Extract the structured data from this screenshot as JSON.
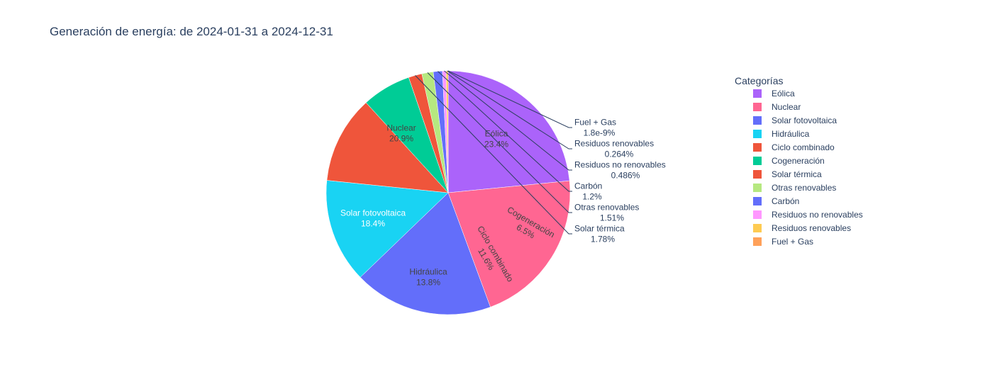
{
  "chart_data": {
    "type": "pie",
    "title": "Generación de energía: de 2024-01-31 a 2024-12-31",
    "legend_title": "Categorías",
    "legend_position": "right",
    "slices": [
      {
        "label": "Eólica",
        "value": 23.4,
        "text": "23.4%",
        "color": "#ab63fa"
      },
      {
        "label": "Nuclear",
        "value": 20.9,
        "text": "20.9%",
        "color": "#ff6692"
      },
      {
        "label": "Solar fotovoltaica",
        "value": 18.4,
        "text": "18.4%",
        "color": "#636efa"
      },
      {
        "label": "Hidráulica",
        "value": 13.8,
        "text": "13.8%",
        "color": "#19d3f3"
      },
      {
        "label": "Ciclo combinado",
        "value": 11.6,
        "text": "11.6%",
        "color": "#ef553b"
      },
      {
        "label": "Cogeneración",
        "value": 6.5,
        "text": "6.5%",
        "color": "#00cc96"
      },
      {
        "label": "Solar térmica",
        "value": 1.78,
        "text": "1.78%",
        "color": "#ef553b"
      },
      {
        "label": "Otras renovables",
        "value": 1.51,
        "text": "1.51%",
        "color": "#b6e880"
      },
      {
        "label": "Carbón",
        "value": 1.2,
        "text": "1.2%",
        "color": "#636efa"
      },
      {
        "label": "Residuos no renovables",
        "value": 0.486,
        "text": "0.486%",
        "color": "#ff97ff"
      },
      {
        "label": "Residuos renovables",
        "value": 0.264,
        "text": "0.264%",
        "color": "#fecb52"
      },
      {
        "label": "Fuel + Gas",
        "value": 1.8e-09,
        "text": "1.8e-9%",
        "color": "#ffa15a"
      }
    ]
  }
}
